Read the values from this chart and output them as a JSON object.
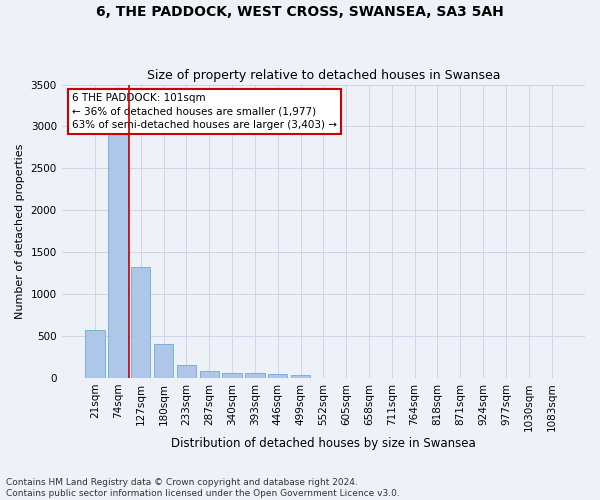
{
  "title": "6, THE PADDOCK, WEST CROSS, SWANSEA, SA3 5AH",
  "subtitle": "Size of property relative to detached houses in Swansea",
  "xlabel": "Distribution of detached houses by size in Swansea",
  "ylabel": "Number of detached properties",
  "categories": [
    "21sqm",
    "74sqm",
    "127sqm",
    "180sqm",
    "233sqm",
    "287sqm",
    "340sqm",
    "393sqm",
    "446sqm",
    "499sqm",
    "552sqm",
    "605sqm",
    "658sqm",
    "711sqm",
    "764sqm",
    "818sqm",
    "871sqm",
    "924sqm",
    "977sqm",
    "1030sqm",
    "1083sqm"
  ],
  "values": [
    570,
    2910,
    1320,
    410,
    150,
    80,
    60,
    55,
    45,
    40,
    0,
    0,
    0,
    0,
    0,
    0,
    0,
    0,
    0,
    0,
    0
  ],
  "bar_color": "#aec6e8",
  "bar_edge_color": "#5a9fd4",
  "vline_x": 1.5,
  "vline_color": "#cc0000",
  "annotation_line1": "6 THE PADDOCK: 101sqm",
  "annotation_line2": "← 36% of detached houses are smaller (1,977)",
  "annotation_line3": "63% of semi-detached houses are larger (3,403) →",
  "annotation_box_color": "#ffffff",
  "annotation_border_color": "#cc0000",
  "ylim": [
    0,
    3500
  ],
  "yticks": [
    0,
    500,
    1000,
    1500,
    2000,
    2500,
    3000,
    3500
  ],
  "grid_color": "#ccd5e8",
  "bg_color": "#eef2f8",
  "footer": "Contains HM Land Registry data © Crown copyright and database right 2024.\nContains public sector information licensed under the Open Government Licence v3.0.",
  "title_fontsize": 10,
  "subtitle_fontsize": 9,
  "xlabel_fontsize": 8.5,
  "ylabel_fontsize": 8,
  "tick_fontsize": 7.5,
  "annotation_fontsize": 7.5,
  "footer_fontsize": 6.5
}
